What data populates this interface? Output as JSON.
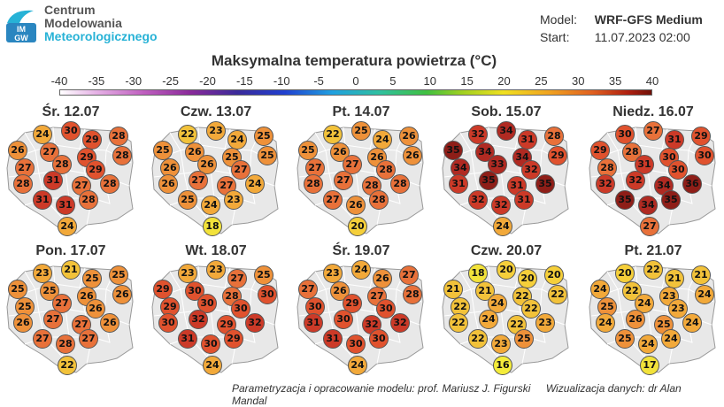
{
  "header": {
    "logo_text": "IMGW",
    "logo_lines": [
      "Centrum",
      "Modelowania",
      "Meteorologicznego"
    ],
    "model_label": "Model:",
    "model_value": "WRF-GFS Medium",
    "start_label": "Start:",
    "start_value": "11.07.2023 02:00"
  },
  "title": "Maksymalna temperatura powietrza (°C)",
  "colorbar": {
    "labels": [
      "-40",
      "-35",
      "-30",
      "-25",
      "-20",
      "-15",
      "-10",
      "-5",
      "0",
      "5",
      "10",
      "15",
      "20",
      "25",
      "30",
      "35",
      "40"
    ]
  },
  "panels": [
    {
      "title": "Śr. 12.07",
      "values": [
        24,
        30,
        29,
        28,
        26,
        27,
        29,
        28,
        27,
        28,
        29,
        28,
        31,
        27,
        28,
        31,
        31,
        28,
        24
      ]
    },
    {
      "title": "Czw. 13.07",
      "values": [
        22,
        23,
        24,
        25,
        25,
        26,
        25,
        25,
        26,
        26,
        27,
        26,
        27,
        27,
        24,
        25,
        24,
        23,
        18
      ]
    },
    {
      "title": "Pt. 14.07",
      "values": [
        22,
        25,
        24,
        26,
        25,
        26,
        26,
        26,
        27,
        27,
        28,
        28,
        27,
        28,
        28,
        27,
        26,
        28,
        20
      ]
    },
    {
      "title": "Sob. 15.07",
      "values": [
        32,
        34,
        31,
        28,
        35,
        34,
        34,
        29,
        34,
        33,
        32,
        31,
        35,
        31,
        35,
        32,
        32,
        31,
        24
      ]
    },
    {
      "title": "Niedz. 16.07",
      "values": [
        30,
        27,
        31,
        29,
        29,
        28,
        30,
        30,
        28,
        31,
        30,
        32,
        32,
        34,
        36,
        35,
        34,
        35,
        27
      ]
    },
    {
      "title": "Pon. 17.07",
      "values": [
        23,
        21,
        25,
        25,
        25,
        25,
        26,
        26,
        25,
        27,
        26,
        26,
        27,
        27,
        26,
        27,
        28,
        27,
        22
      ]
    },
    {
      "title": "Wt. 18.07",
      "values": [
        23,
        23,
        27,
        25,
        29,
        30,
        28,
        30,
        29,
        30,
        30,
        30,
        32,
        29,
        32,
        31,
        30,
        29,
        24
      ]
    },
    {
      "title": "Śr. 19.07",
      "values": [
        23,
        24,
        26,
        27,
        27,
        26,
        27,
        28,
        30,
        29,
        30,
        31,
        30,
        32,
        32,
        31,
        30,
        30,
        24
      ]
    },
    {
      "title": "Czw. 20.07",
      "values": [
        18,
        20,
        20,
        20,
        21,
        21,
        22,
        22,
        22,
        24,
        22,
        22,
        24,
        22,
        23,
        22,
        23,
        25,
        16
      ]
    },
    {
      "title": "Pt. 21.07",
      "values": [
        20,
        22,
        21,
        21,
        24,
        22,
        23,
        24,
        25,
        24,
        23,
        24,
        26,
        25,
        24,
        25,
        24,
        24,
        17
      ]
    }
  ],
  "footer": {
    "left": "Parametryzacja i opracowanie modelu: prof. Mariusz J. Figurski",
    "right": "Wizualizacja danych: dr Alan Mandal"
  }
}
